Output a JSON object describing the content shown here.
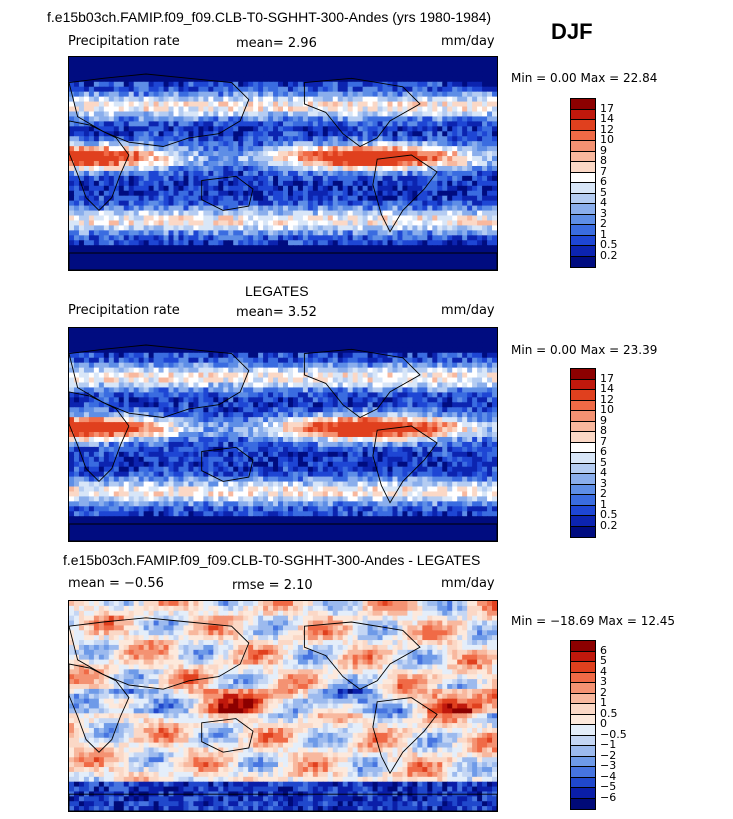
{
  "season": "DJF",
  "panels": [
    {
      "title": "f.e15b03ch.FAMIP.f09_f09.CLB-T0-SGHHT-300-Andes (yrs 1980-1984)",
      "field_label": "Precipitation rate",
      "stat1": "mean=   2.96",
      "stat2": "",
      "units": "mm/day",
      "minmax": "Min =    0.00 Max =  22.84",
      "levels": [
        "17",
        "14",
        "12",
        "10",
        "9",
        "8",
        "7",
        "6",
        "5",
        "4",
        "3",
        "2",
        "1",
        "0.5",
        "0.2"
      ],
      "colors": [
        "#8c0000",
        "#c0180c",
        "#e0401e",
        "#f06a46",
        "#f49272",
        "#f8b89e",
        "#fbd8c6",
        "#ffffff",
        "#d8e6f8",
        "#b4ccf2",
        "#8aaeec",
        "#5e8ee6",
        "#3a6ce0",
        "#1e46d4",
        "#0c24b0",
        "#000c80"
      ],
      "map_tint": "mixed"
    },
    {
      "title": "LEGATES",
      "field_label": "Precipitation rate",
      "stat1": "mean=   3.52",
      "stat2": "",
      "units": "mm/day",
      "minmax": "Min =    0.00 Max =  23.39",
      "levels": [
        "17",
        "14",
        "12",
        "10",
        "9",
        "8",
        "7",
        "6",
        "5",
        "4",
        "3",
        "2",
        "1",
        "0.5",
        "0.2"
      ],
      "colors": [
        "#8c0000",
        "#c0180c",
        "#e0401e",
        "#f06a46",
        "#f49272",
        "#f8b89e",
        "#fbd8c6",
        "#ffffff",
        "#d8e6f8",
        "#b4ccf2",
        "#8aaeec",
        "#5e8ee6",
        "#3a6ce0",
        "#1e46d4",
        "#0c24b0",
        "#000c80"
      ],
      "map_tint": "mixed"
    },
    {
      "title": "f.e15b03ch.FAMIP.f09_f09.CLB-T0-SGHHT-300-Andes - LEGATES",
      "field_label": "",
      "stat1": "mean =   −0.56",
      "stat2": "rmse =    2.10",
      "units": "mm/day",
      "minmax": "Min = −18.69 Max =   12.45",
      "levels": [
        "6",
        "5",
        "4",
        "3",
        "2",
        "1",
        "0.5",
        "0",
        "−0.5",
        "−1",
        "−2",
        "−3",
        "−4",
        "−5",
        "−6"
      ],
      "colors": [
        "#8c0000",
        "#c0180c",
        "#e0401e",
        "#f06a46",
        "#f49272",
        "#f8b89e",
        "#fbd8c6",
        "#fde9dc",
        "#e4eefa",
        "#c4d6f4",
        "#9cbaee",
        "#6e9ae8",
        "#4674e0",
        "#2048cc",
        "#0a1ea8",
        "#000a78"
      ],
      "map_tint": "diff"
    }
  ],
  "chart_data": [
    {
      "type": "heatmap",
      "title": "f.e15b03ch.FAMIP.f09_f09.CLB-T0-SGHHT-300-Andes (yrs 1980-1984)",
      "variable": "Precipitation rate",
      "units": "mm/day",
      "mean": 2.96,
      "min": 0.0,
      "max": 22.84,
      "contour_levels": [
        0.2,
        0.5,
        1,
        2,
        3,
        4,
        5,
        6,
        7,
        8,
        9,
        10,
        12,
        14,
        17
      ]
    },
    {
      "type": "heatmap",
      "title": "LEGATES",
      "variable": "Precipitation rate",
      "units": "mm/day",
      "mean": 3.52,
      "min": 0.0,
      "max": 23.39,
      "contour_levels": [
        0.2,
        0.5,
        1,
        2,
        3,
        4,
        5,
        6,
        7,
        8,
        9,
        10,
        12,
        14,
        17
      ]
    },
    {
      "type": "heatmap",
      "title": "f.e15b03ch.FAMIP.f09_f09.CLB-T0-SGHHT-300-Andes - LEGATES",
      "units": "mm/day",
      "mean": -0.56,
      "rmse": 2.1,
      "min": -18.69,
      "max": 12.45,
      "contour_levels": [
        -6,
        -5,
        -4,
        -3,
        -2,
        -1,
        -0.5,
        0,
        0.5,
        1,
        2,
        3,
        4,
        5,
        6
      ]
    }
  ]
}
